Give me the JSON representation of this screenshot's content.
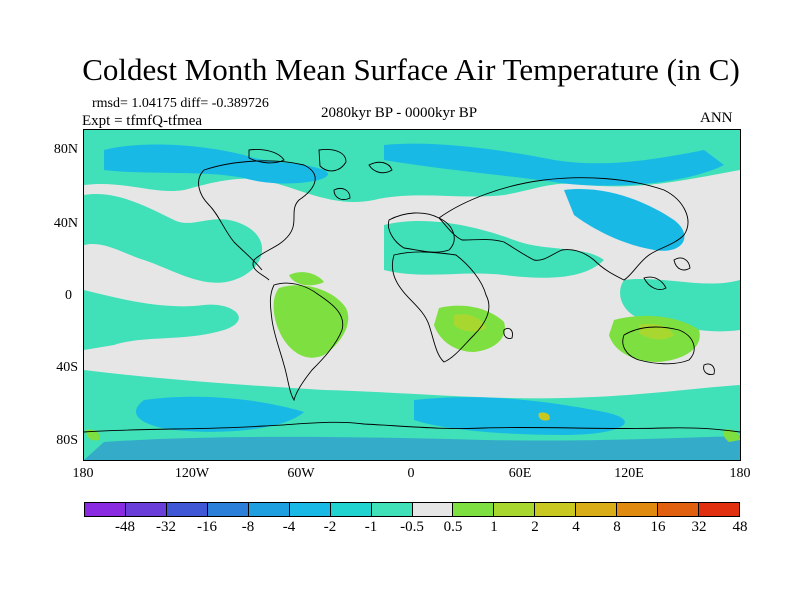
{
  "title": "Coldest Month Mean Surface Air Temperature (in C)",
  "stats": "rmsd= 1.04175 diff= -0.389726",
  "expt": "Expt = tfmfQ-tfmea",
  "period": "2080kyr BP - 0000kyr BP",
  "season": "ANN",
  "axes": {
    "y_ticks": [
      "80N",
      "40N",
      "0",
      "40S",
      "80S"
    ],
    "x_ticks": [
      "180",
      "120W",
      "60W",
      "0",
      "60E",
      "120E",
      "180"
    ]
  },
  "colorbar": {
    "colors": [
      "#8a2be2",
      "#6a3ed8",
      "#3f57d4",
      "#2c7fd8",
      "#1f9fe0",
      "#19b9e6",
      "#20d2d0",
      "#40e0b8",
      "#e6e6e6",
      "#7ee040",
      "#a8d830",
      "#c8c820",
      "#d9ad18",
      "#e08a10",
      "#e06010",
      "#e03010"
    ],
    "labels": [
      "-48",
      "-32",
      "-16",
      "-8",
      "-4",
      "-2",
      "-1",
      "-0.5",
      "0.5",
      "1",
      "2",
      "4",
      "8",
      "16",
      "32",
      "48"
    ]
  },
  "map_colors": {
    "neutral": "#e6e6e6",
    "cyan": "#19b9e6",
    "teal": "#40e0b8",
    "green": "#7ee040",
    "yellowgreen": "#a8d830",
    "blue": "#2c7fd8"
  }
}
